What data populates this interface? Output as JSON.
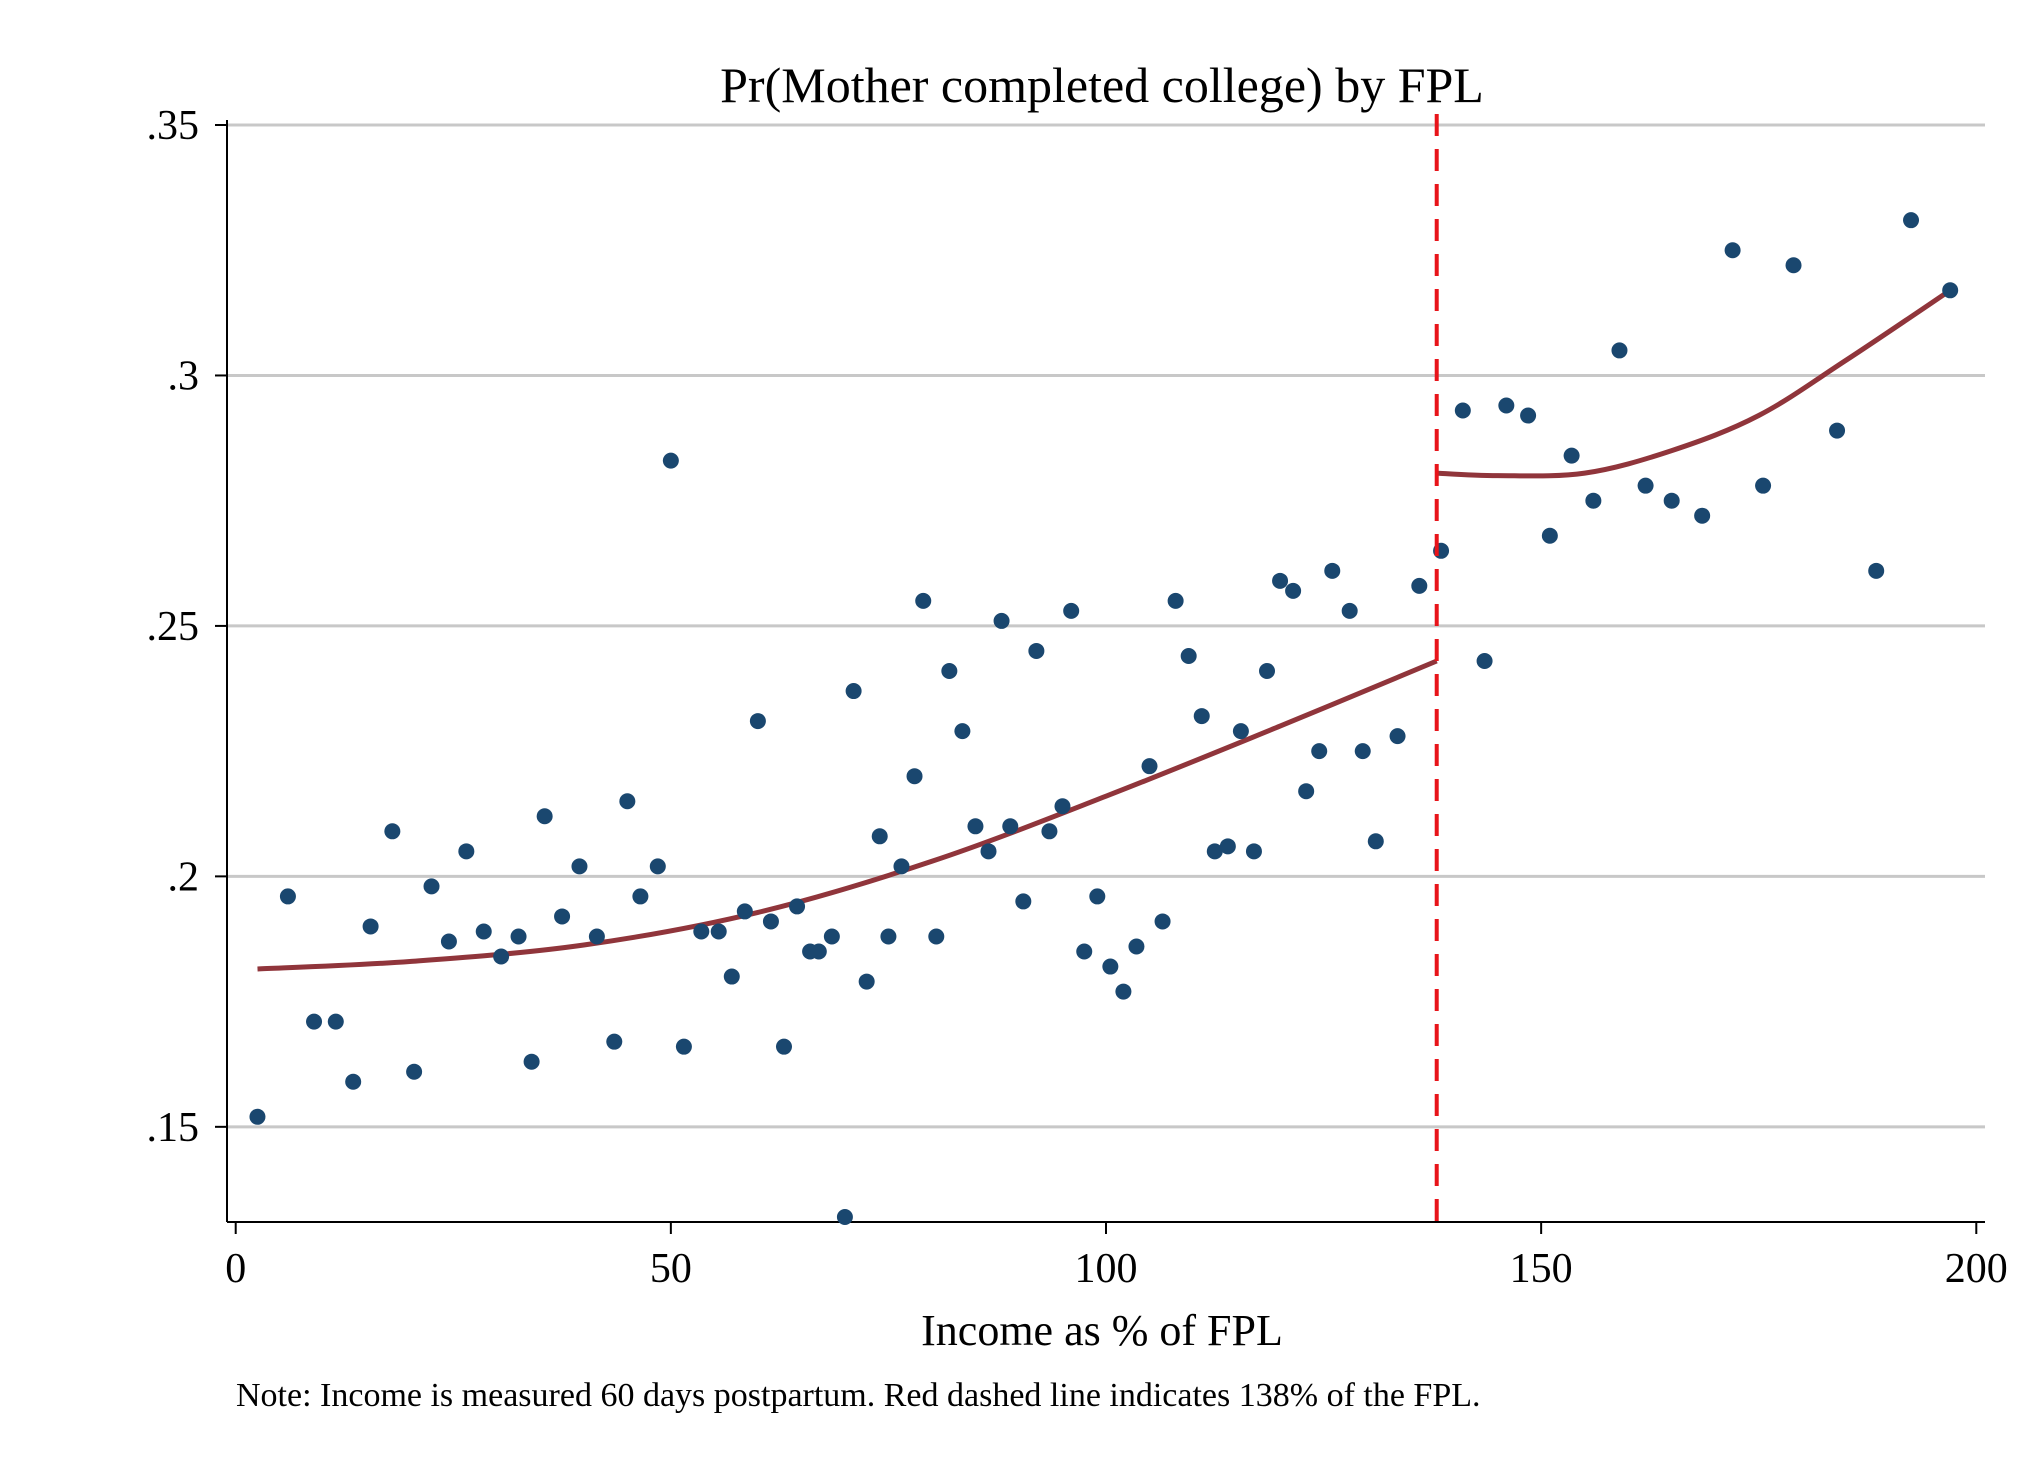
{
  "chart_data": {
    "type": "scatter",
    "title": "Pr(Mother completed college) by FPL",
    "xlabel": "Income as % of FPL",
    "ylabel": "",
    "note": "Note: Income is measured 60 days postpartum. Red dashed line indicates 138% of the FPL.",
    "xlim": [
      -1,
      201
    ],
    "ylim": [
      0.131,
      0.351
    ],
    "x_ticks": [
      0,
      50,
      100,
      150,
      200
    ],
    "x_tick_labels": [
      "0",
      "50",
      "100",
      "150",
      "200"
    ],
    "y_ticks": [
      0.15,
      0.2,
      0.25,
      0.3,
      0.35
    ],
    "y_tick_labels": [
      ".15",
      ".2",
      ".25",
      ".3",
      ".35"
    ],
    "grid": true,
    "colors": {
      "points": "#1a476f",
      "fit": "#90353b",
      "cutoff": "#e8141a",
      "grid": "#c8c8c8"
    },
    "cutoff": {
      "x": 138,
      "style": "dashed"
    },
    "points": [
      [
        2.5,
        0.152
      ],
      [
        6,
        0.196
      ],
      [
        9,
        0.171
      ],
      [
        11.5,
        0.171
      ],
      [
        13.5,
        0.159
      ],
      [
        15.5,
        0.19
      ],
      [
        18,
        0.209
      ],
      [
        20.5,
        0.161
      ],
      [
        22.5,
        0.198
      ],
      [
        24.5,
        0.187
      ],
      [
        26.5,
        0.205
      ],
      [
        28.5,
        0.189
      ],
      [
        30.5,
        0.184
      ],
      [
        32.5,
        0.188
      ],
      [
        34,
        0.163
      ],
      [
        35.5,
        0.212
      ],
      [
        37.5,
        0.192
      ],
      [
        39.5,
        0.202
      ],
      [
        41.5,
        0.188
      ],
      [
        43.5,
        0.167
      ],
      [
        45,
        0.215
      ],
      [
        46.5,
        0.196
      ],
      [
        48.5,
        0.202
      ],
      [
        50,
        0.283
      ],
      [
        51.5,
        0.166
      ],
      [
        53.5,
        0.189
      ],
      [
        55.5,
        0.189
      ],
      [
        57,
        0.18
      ],
      [
        58.5,
        0.193
      ],
      [
        60,
        0.231
      ],
      [
        61.5,
        0.191
      ],
      [
        63,
        0.166
      ],
      [
        64.5,
        0.194
      ],
      [
        66,
        0.185
      ],
      [
        67,
        0.185
      ],
      [
        68.5,
        0.188
      ],
      [
        70,
        0.132
      ],
      [
        71,
        0.237
      ],
      [
        72.5,
        0.179
      ],
      [
        74,
        0.208
      ],
      [
        75,
        0.188
      ],
      [
        76.5,
        0.202
      ],
      [
        78,
        0.22
      ],
      [
        79,
        0.255
      ],
      [
        80.5,
        0.188
      ],
      [
        82,
        0.241
      ],
      [
        83.5,
        0.229
      ],
      [
        85,
        0.21
      ],
      [
        86.5,
        0.205
      ],
      [
        88,
        0.251
      ],
      [
        89,
        0.21
      ],
      [
        90.5,
        0.195
      ],
      [
        92,
        0.245
      ],
      [
        93.5,
        0.209
      ],
      [
        95,
        0.214
      ],
      [
        96,
        0.253
      ],
      [
        97.5,
        0.185
      ],
      [
        99,
        0.196
      ],
      [
        100.5,
        0.182
      ],
      [
        102,
        0.177
      ],
      [
        103.5,
        0.186
      ],
      [
        105,
        0.222
      ],
      [
        106.5,
        0.191
      ],
      [
        108,
        0.255
      ],
      [
        109.5,
        0.244
      ],
      [
        111,
        0.232
      ],
      [
        112.5,
        0.205
      ],
      [
        114,
        0.206
      ],
      [
        115.5,
        0.229
      ],
      [
        117,
        0.205
      ],
      [
        118.5,
        0.241
      ],
      [
        120,
        0.259
      ],
      [
        121.5,
        0.257
      ],
      [
        123,
        0.217
      ],
      [
        124.5,
        0.225
      ],
      [
        126,
        0.261
      ],
      [
        128,
        0.253
      ],
      [
        129.5,
        0.225
      ],
      [
        131,
        0.207
      ],
      [
        133.5,
        0.228
      ],
      [
        136,
        0.258
      ],
      [
        138.5,
        0.265
      ],
      [
        141,
        0.293
      ],
      [
        143.5,
        0.243
      ],
      [
        146,
        0.294
      ],
      [
        148.5,
        0.292
      ],
      [
        151,
        0.268
      ],
      [
        153.5,
        0.284
      ],
      [
        156,
        0.275
      ],
      [
        159,
        0.305
      ],
      [
        162,
        0.278
      ],
      [
        165,
        0.275
      ],
      [
        168.5,
        0.272
      ],
      [
        172,
        0.325
      ],
      [
        175.5,
        0.278
      ],
      [
        179,
        0.322
      ],
      [
        184,
        0.289
      ],
      [
        188.5,
        0.261
      ],
      [
        192.5,
        0.331
      ],
      [
        197,
        0.317
      ]
    ],
    "fit_left": [
      [
        2.5,
        0.1815
      ],
      [
        20,
        0.183
      ],
      [
        40,
        0.1863
      ],
      [
        60,
        0.1928
      ],
      [
        80,
        0.203
      ],
      [
        100,
        0.216
      ],
      [
        120,
        0.23
      ],
      [
        138,
        0.243
      ]
    ],
    "fit_right": [
      [
        138,
        0.2805
      ],
      [
        145,
        0.28
      ],
      [
        155,
        0.2805
      ],
      [
        165,
        0.285
      ],
      [
        175,
        0.292
      ],
      [
        185,
        0.303
      ],
      [
        197,
        0.317
      ]
    ]
  }
}
